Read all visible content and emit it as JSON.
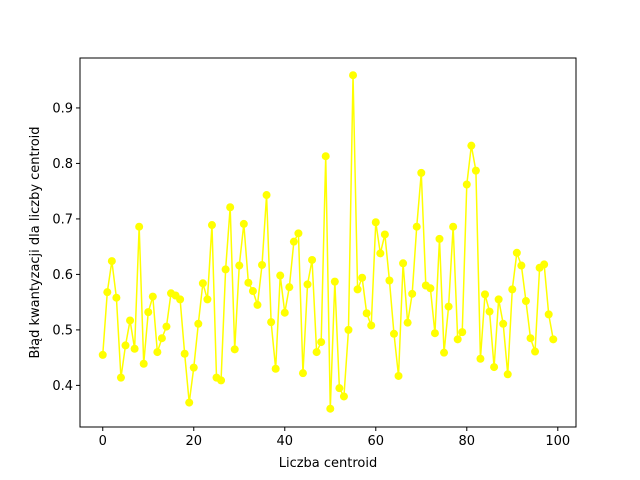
{
  "chart_data": {
    "type": "line",
    "title": "",
    "xlabel": "Liczba centroid",
    "ylabel": "Błąd kwantyzacji dla liczby centroid",
    "xlim": [
      -5,
      104
    ],
    "ylim": [
      0.325,
      0.99
    ],
    "xticks": [
      0,
      20,
      40,
      60,
      80,
      100
    ],
    "yticks": [
      0.4,
      0.5,
      0.6,
      0.7,
      0.8,
      0.9
    ],
    "grid": false,
    "series": [
      {
        "color": "#ffff00",
        "marker": "circle",
        "x": [
          0,
          1,
          2,
          3,
          4,
          5,
          6,
          7,
          8,
          9,
          10,
          11,
          12,
          13,
          14,
          15,
          16,
          17,
          18,
          19,
          20,
          21,
          22,
          23,
          24,
          25,
          26,
          27,
          28,
          29,
          30,
          31,
          32,
          33,
          34,
          35,
          36,
          37,
          38,
          39,
          40,
          41,
          42,
          43,
          44,
          45,
          46,
          47,
          48,
          49,
          50,
          51,
          52,
          53,
          54,
          55,
          56,
          57,
          58,
          59,
          60,
          61,
          62,
          63,
          64,
          65,
          66,
          67,
          68,
          69,
          70,
          71,
          72,
          73,
          74,
          75,
          76,
          77,
          78,
          79,
          80,
          81,
          82,
          83,
          84,
          85,
          86,
          87,
          88,
          89,
          90,
          91,
          92,
          93,
          94,
          95,
          96,
          97,
          98,
          99
        ],
        "values": [
          0.455,
          0.568,
          0.624,
          0.558,
          0.414,
          0.472,
          0.517,
          0.466,
          0.686,
          0.439,
          0.532,
          0.56,
          0.46,
          0.485,
          0.506,
          0.566,
          0.562,
          0.555,
          0.457,
          0.369,
          0.432,
          0.511,
          0.584,
          0.555,
          0.689,
          0.414,
          0.409,
          0.609,
          0.721,
          0.465,
          0.616,
          0.691,
          0.585,
          0.57,
          0.545,
          0.617,
          0.743,
          0.514,
          0.43,
          0.598,
          0.531,
          0.577,
          0.659,
          0.674,
          0.422,
          0.582,
          0.626,
          0.46,
          0.478,
          0.813,
          0.358,
          0.587,
          0.395,
          0.38,
          0.5,
          0.959,
          0.573,
          0.594,
          0.53,
          0.508,
          0.694,
          0.638,
          0.672,
          0.589,
          0.493,
          0.417,
          0.62,
          0.513,
          0.565,
          0.686,
          0.783,
          0.58,
          0.575,
          0.494,
          0.664,
          0.459,
          0.542,
          0.686,
          0.483,
          0.496,
          0.762,
          0.832,
          0.787,
          0.448,
          0.564,
          0.533,
          0.433,
          0.555,
          0.511,
          0.42,
          0.573,
          0.639,
          0.616,
          0.552,
          0.485,
          0.461,
          0.612,
          0.618,
          0.528,
          0.483
        ]
      }
    ]
  }
}
